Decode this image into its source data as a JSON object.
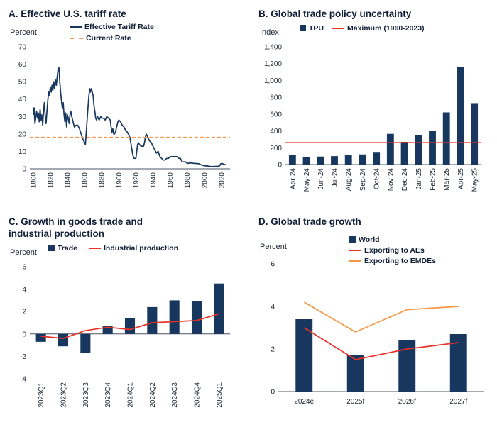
{
  "colors": {
    "navy": "#17375E",
    "red": "#E63329",
    "orange": "#F79646",
    "title_text": "#101E36",
    "tick_text": "#1A2430",
    "axis_line": "#4A5568"
  },
  "chart_data": [
    {
      "id": "panel-a",
      "type": "line",
      "title": "A. Effective U.S. tariff rate",
      "ylabel": "Percent",
      "ylim": [
        0,
        70
      ],
      "ystep": 10,
      "xlim": [
        1796,
        2030
      ],
      "xticks": [
        1800,
        1820,
        1840,
        1860,
        1880,
        1900,
        1920,
        1940,
        1960,
        1980,
        2000,
        2020
      ],
      "legend": [
        {
          "label": "Effective Tariff Rate",
          "swatch": "line",
          "color": "navy"
        },
        {
          "label": "Current Rate",
          "swatch": "dash",
          "color": "orange"
        }
      ],
      "series": [
        {
          "name": "Effective Tariff Rate",
          "type": "line",
          "color": "navy",
          "points": [
            [
              1800,
              31
            ],
            [
              1801,
              35
            ],
            [
              1802,
              26
            ],
            [
              1804,
              33
            ],
            [
              1805,
              29
            ],
            [
              1806,
              32
            ],
            [
              1807,
              27
            ],
            [
              1808,
              34
            ],
            [
              1809,
              28
            ],
            [
              1810,
              31
            ],
            [
              1811,
              25
            ],
            [
              1812,
              33
            ],
            [
              1813,
              38
            ],
            [
              1814,
              30
            ],
            [
              1815,
              26
            ],
            [
              1816,
              33
            ],
            [
              1817,
              39
            ],
            [
              1818,
              44
            ],
            [
              1819,
              42
            ],
            [
              1820,
              47
            ],
            [
              1821,
              44
            ],
            [
              1822,
              48
            ],
            [
              1823,
              45
            ],
            [
              1824,
              50
            ],
            [
              1825,
              46
            ],
            [
              1826,
              51
            ],
            [
              1827,
              48
            ],
            [
              1828,
              53
            ],
            [
              1829,
              57
            ],
            [
              1830,
              58
            ],
            [
              1831,
              50
            ],
            [
              1832,
              44
            ],
            [
              1833,
              39
            ],
            [
              1834,
              35
            ],
            [
              1835,
              38
            ],
            [
              1836,
              31
            ],
            [
              1837,
              27
            ],
            [
              1838,
              32
            ],
            [
              1839,
              24
            ],
            [
              1840,
              31
            ],
            [
              1841,
              29
            ],
            [
              1842,
              26
            ],
            [
              1843,
              31
            ],
            [
              1844,
              33
            ],
            [
              1845,
              30
            ],
            [
              1846,
              28
            ],
            [
              1847,
              26
            ],
            [
              1848,
              24
            ],
            [
              1850,
              25
            ],
            [
              1852,
              25
            ],
            [
              1854,
              23
            ],
            [
              1856,
              20
            ],
            [
              1858,
              17
            ],
            [
              1860,
              15
            ],
            [
              1861,
              14
            ],
            [
              1862,
              21
            ],
            [
              1863,
              28
            ],
            [
              1864,
              35
            ],
            [
              1865,
              42
            ],
            [
              1866,
              46
            ],
            [
              1867,
              44
            ],
            [
              1868,
              46
            ],
            [
              1869,
              44
            ],
            [
              1870,
              42
            ],
            [
              1871,
              36
            ],
            [
              1872,
              33
            ],
            [
              1873,
              29
            ],
            [
              1874,
              28
            ],
            [
              1875,
              30
            ],
            [
              1876,
              29
            ],
            [
              1877,
              28
            ],
            [
              1878,
              29
            ],
            [
              1879,
              30
            ],
            [
              1880,
              29
            ],
            [
              1882,
              29
            ],
            [
              1884,
              28
            ],
            [
              1886,
              30
            ],
            [
              1888,
              29
            ],
            [
              1890,
              28
            ],
            [
              1891,
              24
            ],
            [
              1892,
              21
            ],
            [
              1893,
              23
            ],
            [
              1894,
              20
            ],
            [
              1895,
              20
            ],
            [
              1896,
              21
            ],
            [
              1897,
              23
            ],
            [
              1898,
              25
            ],
            [
              1899,
              27
            ],
            [
              1900,
              28
            ],
            [
              1902,
              27
            ],
            [
              1904,
              25
            ],
            [
              1906,
              24
            ],
            [
              1908,
              22
            ],
            [
              1910,
              21
            ],
            [
              1912,
              19
            ],
            [
              1913,
              18
            ],
            [
              1914,
              15
            ],
            [
              1915,
              12
            ],
            [
              1916,
              9
            ],
            [
              1917,
              7
            ],
            [
              1918,
              6
            ],
            [
              1920,
              6
            ],
            [
              1921,
              10
            ],
            [
              1922,
              14
            ],
            [
              1923,
              15
            ],
            [
              1924,
              14
            ],
            [
              1926,
              13
            ],
            [
              1928,
              13
            ],
            [
              1929,
              13
            ],
            [
              1930,
              15
            ],
            [
              1931,
              18
            ],
            [
              1932,
              20
            ],
            [
              1933,
              19
            ],
            [
              1934,
              18
            ],
            [
              1935,
              17
            ],
            [
              1936,
              16
            ],
            [
              1938,
              15
            ],
            [
              1940,
              13
            ],
            [
              1942,
              11
            ],
            [
              1944,
              9
            ],
            [
              1946,
              10
            ],
            [
              1948,
              7
            ],
            [
              1950,
              6
            ],
            [
              1952,
              5
            ],
            [
              1954,
              5
            ],
            [
              1956,
              6
            ],
            [
              1958,
              6
            ],
            [
              1960,
              7
            ],
            [
              1962,
              7
            ],
            [
              1964,
              7
            ],
            [
              1966,
              7
            ],
            [
              1968,
              7
            ],
            [
              1970,
              6
            ],
            [
              1972,
              6
            ],
            [
              1974,
              4
            ],
            [
              1976,
              4
            ],
            [
              1978,
              4
            ],
            [
              1980,
              3.1
            ],
            [
              1984,
              3.4
            ],
            [
              1988,
              3.1
            ],
            [
              1992,
              3
            ],
            [
              1994,
              2.8
            ],
            [
              1996,
              2.3
            ],
            [
              1998,
              2
            ],
            [
              2000,
              1.8
            ],
            [
              2004,
              1.6
            ],
            [
              2008,
              1.3
            ],
            [
              2012,
              1.4
            ],
            [
              2016,
              1.5
            ],
            [
              2018,
              1.7
            ],
            [
              2019,
              2.8
            ],
            [
              2021,
              3
            ],
            [
              2023,
              2.5
            ],
            [
              2025,
              2.4
            ]
          ]
        },
        {
          "name": "Current Rate",
          "type": "hline",
          "dash": true,
          "color": "orange",
          "value": 18
        }
      ]
    },
    {
      "id": "panel-b",
      "type": "bar",
      "title": "B. Global trade policy uncertainty",
      "ylabel": "Index",
      "ylim": [
        0,
        1400
      ],
      "ystep": 200,
      "thousands": true,
      "rotate_x": true,
      "categories": [
        "Apr-24",
        "May-24",
        "Jun-24",
        "Jul-24",
        "Aug-24",
        "Sep-24",
        "Oct-24",
        "Nov-24",
        "Dec-24",
        "Jan-25",
        "Feb-25",
        "Mar-25",
        "Apr-25",
        "May-25"
      ],
      "legend": [
        {
          "label": "TPU",
          "swatch": "square",
          "color": "navy"
        },
        {
          "label": "Maximum (1960-2023)",
          "swatch": "line",
          "color": "red"
        }
      ],
      "series": [
        {
          "name": "TPU",
          "type": "bar",
          "color": "navy",
          "values": [
            110,
            90,
            95,
            100,
            110,
            120,
            150,
            365,
            270,
            350,
            400,
            620,
            1160,
            730
          ]
        },
        {
          "name": "Maximum (1960-2023)",
          "type": "hline",
          "color": "red",
          "value": 260
        }
      ]
    },
    {
      "id": "panel-c",
      "type": "bar+line",
      "title": "C. Growth in goods trade and industrial production",
      "ylabel": "Percent",
      "ylim": [
        -4,
        6
      ],
      "ystep": 2,
      "rotate_x": true,
      "categories": [
        "2023Q1",
        "2023Q2",
        "2023Q3",
        "2023Q4",
        "2024Q1",
        "2024Q2",
        "2024Q3",
        "2024Q4",
        "2025Q1"
      ],
      "legend": [
        {
          "label": "Trade",
          "swatch": "square",
          "color": "navy"
        },
        {
          "label": "Industrial production",
          "swatch": "line",
          "color": "red"
        }
      ],
      "series": [
        {
          "name": "Trade",
          "type": "bar",
          "color": "navy",
          "values": [
            -0.7,
            -1.1,
            -1.7,
            0.7,
            1.4,
            2.4,
            3.0,
            2.9,
            4.5
          ]
        },
        {
          "name": "Industrial production",
          "type": "line",
          "color": "red",
          "values": [
            -0.2,
            -0.4,
            0.3,
            0.6,
            0.4,
            1.0,
            1.1,
            1.2,
            1.8
          ]
        }
      ]
    },
    {
      "id": "panel-d",
      "type": "bar+line",
      "title": "D. Global trade growth",
      "ylabel": "Percent",
      "ylim": [
        0,
        6
      ],
      "ystep": 2,
      "rotate_x": false,
      "categories": [
        "2024e",
        "2025f",
        "2026f",
        "2027f"
      ],
      "legend": [
        {
          "label": "World",
          "swatch": "square",
          "color": "navy"
        },
        {
          "label": "Exporting to AEs",
          "swatch": "line",
          "color": "red"
        },
        {
          "label": "Exporting to EMDEs",
          "swatch": "line",
          "color": "orange"
        }
      ],
      "series": [
        {
          "name": "World",
          "type": "bar",
          "color": "navy",
          "values": [
            3.4,
            1.7,
            2.4,
            2.7
          ]
        },
        {
          "name": "Exporting to AEs",
          "type": "line",
          "color": "red",
          "values": [
            3.0,
            1.5,
            2.0,
            2.3
          ]
        },
        {
          "name": "Exporting to EMDEs",
          "type": "line",
          "color": "orange",
          "values": [
            4.2,
            2.8,
            3.85,
            4.0
          ]
        }
      ]
    }
  ]
}
